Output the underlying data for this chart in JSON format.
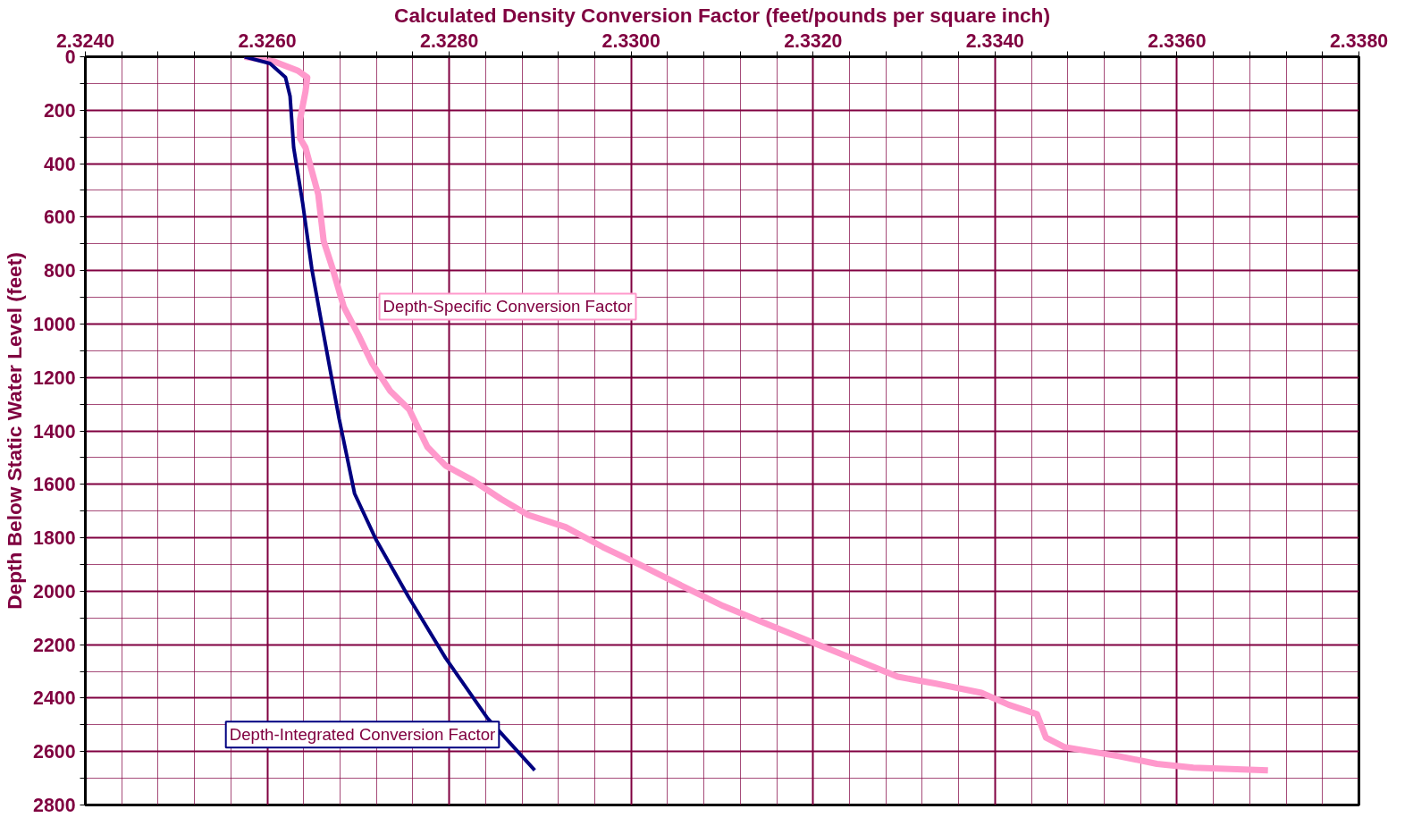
{
  "chart_data": {
    "type": "line",
    "xlabel": "Calculated Density Conversion Factor (feet/pounds per square inch)",
    "ylabel": "Depth Below Static Water Level (feet)",
    "xlim": [
      2.324,
      2.338
    ],
    "ylim": [
      2800,
      0
    ],
    "xticks": [
      {
        "value": 2.324,
        "label": "2.3240"
      },
      {
        "value": 2.3244,
        "label": null
      },
      {
        "value": 2.3248,
        "label": null
      },
      {
        "value": 2.3252,
        "label": null
      },
      {
        "value": 2.3256,
        "label": null
      },
      {
        "value": 2.326,
        "label": "2.3260"
      },
      {
        "value": 2.3264,
        "label": null
      },
      {
        "value": 2.3268,
        "label": null
      },
      {
        "value": 2.3272,
        "label": null
      },
      {
        "value": 2.3276,
        "label": null
      },
      {
        "value": 2.328,
        "label": "2.3280"
      },
      {
        "value": 2.3284,
        "label": null
      },
      {
        "value": 2.3288,
        "label": null
      },
      {
        "value": 2.3292,
        "label": null
      },
      {
        "value": 2.3296,
        "label": null
      },
      {
        "value": 2.33,
        "label": "2.3300"
      },
      {
        "value": 2.3304,
        "label": null
      },
      {
        "value": 2.3308,
        "label": null
      },
      {
        "value": 2.3312,
        "label": null
      },
      {
        "value": 2.3316,
        "label": null
      },
      {
        "value": 2.332,
        "label": "2.3320"
      },
      {
        "value": 2.3324,
        "label": null
      },
      {
        "value": 2.3328,
        "label": null
      },
      {
        "value": 2.3332,
        "label": null
      },
      {
        "value": 2.3336,
        "label": null
      },
      {
        "value": 2.334,
        "label": "2.3340"
      },
      {
        "value": 2.3344,
        "label": null
      },
      {
        "value": 2.3348,
        "label": null
      },
      {
        "value": 2.3352,
        "label": null
      },
      {
        "value": 2.3356,
        "label": null
      },
      {
        "value": 2.336,
        "label": "2.3360"
      },
      {
        "value": 2.3364,
        "label": null
      },
      {
        "value": 2.3368,
        "label": null
      },
      {
        "value": 2.3372,
        "label": null
      },
      {
        "value": 2.3376,
        "label": null
      },
      {
        "value": 2.338,
        "label": "2.3380"
      }
    ],
    "yticks": [
      0,
      {
        "value": 100,
        "label": null
      },
      200,
      {
        "value": 300,
        "label": null
      },
      400,
      {
        "value": 500,
        "label": null
      },
      600,
      {
        "value": 700,
        "label": null
      },
      800,
      {
        "value": 900,
        "label": null
      },
      1000,
      {
        "value": 1100,
        "label": null
      },
      1200,
      {
        "value": 1300,
        "label": null
      },
      1400,
      {
        "value": 1500,
        "label": null
      },
      1600,
      {
        "value": 1700,
        "label": null
      },
      1800,
      {
        "value": 1900,
        "label": null
      },
      2000,
      {
        "value": 2100,
        "label": null
      },
      2200,
      {
        "value": 2300,
        "label": null
      },
      2400,
      {
        "value": 2500,
        "label": null
      },
      2600,
      {
        "value": 2700,
        "label": null
      },
      2800
    ],
    "grid": true,
    "legend": false,
    "series": [
      {
        "name": "Depth-Specific Conversion Factor",
        "color": "#ff99cc",
        "x": [
          2.32575,
          2.32608,
          2.32634,
          2.32644,
          2.32642,
          2.32636,
          2.32636,
          2.32642,
          2.32649,
          2.32656,
          2.32662,
          2.32672,
          2.32684,
          2.327,
          2.32715,
          2.32735,
          2.32756,
          2.32766,
          2.32776,
          2.32796,
          2.32826,
          2.32857,
          2.32887,
          2.32928,
          2.32969,
          2.33009,
          2.3305,
          2.33101,
          2.33151,
          2.33202,
          2.33253,
          2.33293,
          2.33334,
          2.33385,
          2.33415,
          2.33446,
          2.33456,
          2.33476,
          2.33537,
          2.33578,
          2.33618,
          2.337
        ],
        "values": [
          0,
          18,
          53,
          77,
          130,
          235,
          305,
          340,
          428,
          515,
          690,
          795,
          935,
          1040,
          1146,
          1250,
          1320,
          1390,
          1460,
          1530,
          1585,
          1655,
          1715,
          1760,
          1835,
          1900,
          1970,
          2055,
          2125,
          2195,
          2265,
          2320,
          2345,
          2380,
          2425,
          2460,
          2548,
          2583,
          2618,
          2646,
          2660,
          2670
        ]
      },
      {
        "name": "Depth-Integrated Conversion Factor",
        "color": "#000080",
        "x": [
          2.32575,
          2.32603,
          2.3262,
          2.32625,
          2.32629,
          2.32639,
          2.32649,
          2.32662,
          2.32679,
          2.32696,
          2.3272,
          2.32755,
          2.32796,
          2.32842,
          2.32894
        ],
        "values": [
          0,
          25,
          77,
          147,
          340,
          550,
          795,
          1040,
          1355,
          1635,
          1810,
          2020,
          2250,
          2475,
          2670
        ]
      }
    ]
  }
}
